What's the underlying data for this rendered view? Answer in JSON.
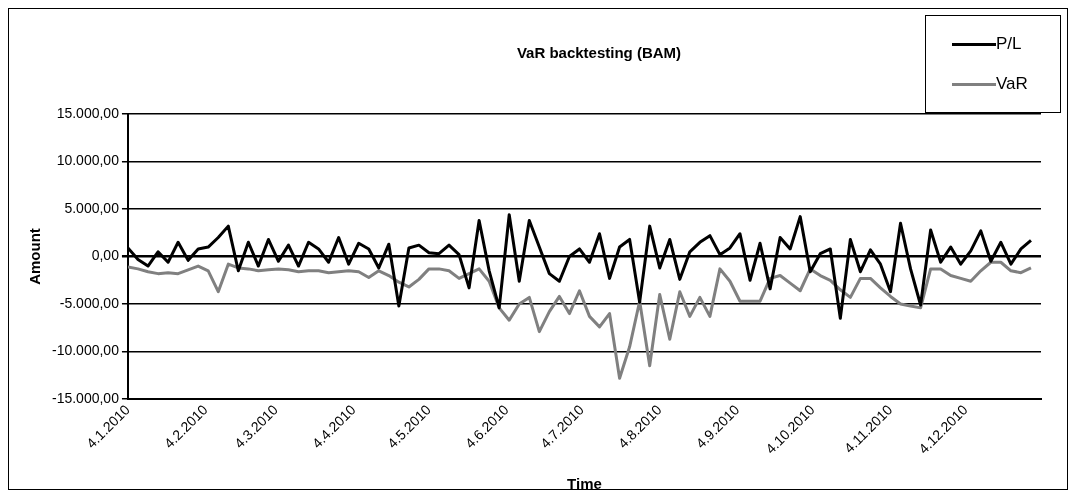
{
  "chart_data": {
    "type": "line",
    "title": "VaR backtesting (BAM)",
    "xlabel": "Time",
    "ylabel": "Amount",
    "legend": "top right",
    "grid": "y",
    "marker": "none",
    "x": [
      "2010-01-04",
      "2010-01-08",
      "2010-01-12",
      "2010-01-16",
      "2010-01-20",
      "2010-01-24",
      "2010-01-28",
      "2010-02-01",
      "2010-02-05",
      "2010-02-09",
      "2010-02-13",
      "2010-02-17",
      "2010-02-21",
      "2010-02-25",
      "2010-03-01",
      "2010-03-05",
      "2010-03-09",
      "2010-03-13",
      "2010-03-17",
      "2010-03-21",
      "2010-03-25",
      "2010-03-29",
      "2010-04-02",
      "2010-04-06",
      "2010-04-10",
      "2010-04-14",
      "2010-04-18",
      "2010-04-22",
      "2010-04-26",
      "2010-04-30",
      "2010-05-04",
      "2010-05-08",
      "2010-05-12",
      "2010-05-16",
      "2010-05-20",
      "2010-05-24",
      "2010-05-28",
      "2010-06-01",
      "2010-06-05",
      "2010-06-09",
      "2010-06-13",
      "2010-06-17",
      "2010-06-21",
      "2010-06-25",
      "2010-06-29",
      "2010-07-03",
      "2010-07-07",
      "2010-07-11",
      "2010-07-15",
      "2010-07-19",
      "2010-07-23",
      "2010-07-27",
      "2010-07-31",
      "2010-08-04",
      "2010-08-08",
      "2010-08-12",
      "2010-08-16",
      "2010-08-20",
      "2010-08-24",
      "2010-08-28",
      "2010-09-01",
      "2010-09-05",
      "2010-09-09",
      "2010-09-13",
      "2010-09-17",
      "2010-09-21",
      "2010-09-25",
      "2010-09-29",
      "2010-10-03",
      "2010-10-07",
      "2010-10-11",
      "2010-10-15",
      "2010-10-19",
      "2010-10-23",
      "2010-10-27",
      "2010-10-31",
      "2010-11-04",
      "2010-11-08",
      "2010-11-12",
      "2010-11-16",
      "2010-11-20",
      "2010-11-24",
      "2010-11-28",
      "2010-12-02",
      "2010-12-06",
      "2010-12-10",
      "2010-12-14",
      "2010-12-18",
      "2010-12-22",
      "2010-12-26",
      "2010-12-30"
    ],
    "series": [
      {
        "name": "P/L",
        "color": "#000000",
        "line_style": "solid",
        "values": [
          900,
          -300,
          -1000,
          500,
          -600,
          1500,
          -400,
          800,
          1000,
          2000,
          3200,
          -1500,
          1500,
          -1000,
          1800,
          -500,
          1200,
          -1000,
          1500,
          800,
          -600,
          2000,
          -800,
          1400,
          800,
          -1200,
          1300,
          -5200,
          900,
          1200,
          400,
          300,
          1200,
          200,
          -3300,
          3800,
          -1500,
          -5400,
          4400,
          -2600,
          3800,
          1000,
          -1800,
          -2600,
          0,
          800,
          -600,
          2400,
          -2300,
          1000,
          1800,
          -4800,
          3200,
          -1200,
          1800,
          -2400,
          500,
          1500,
          2200,
          200,
          900,
          2400,
          -2500,
          1400,
          -3400,
          2000,
          800,
          4200,
          -1600,
          300,
          800,
          -6500,
          1800,
          -1600,
          700,
          -800,
          -3700,
          3500,
          -1300,
          -5100,
          2800,
          -600,
          1000,
          -800,
          600,
          2700,
          -500,
          1500,
          -800,
          800,
          1700
        ]
      },
      {
        "name": "VaR",
        "color": "#808080",
        "line_style": "solid",
        "values": [
          -1100,
          -1300,
          -1600,
          -1800,
          -1700,
          -1800,
          -1400,
          -1000,
          -1500,
          -3700,
          -800,
          -1200,
          -1300,
          -1500,
          -1400,
          -1300,
          -1400,
          -1600,
          -1500,
          -1500,
          -1700,
          -1600,
          -1500,
          -1600,
          -2200,
          -1500,
          -2000,
          -2700,
          -3200,
          -2400,
          -1300,
          -1300,
          -1500,
          -2300,
          -1800,
          -1300,
          -2600,
          -5400,
          -6700,
          -5000,
          -4300,
          -7900,
          -5800,
          -4200,
          -6000,
          -3600,
          -6300,
          -7400,
          -6000,
          -12800,
          -9500,
          -4700,
          -11500,
          -4000,
          -8700,
          -3700,
          -6300,
          -4300,
          -6300,
          -1300,
          -2600,
          -4700,
          -4700,
          -4700,
          -2300,
          -2000,
          -2800,
          -3600,
          -1300,
          -2000,
          -2500,
          -3500,
          -4300,
          -2300,
          -2300,
          -3300,
          -4200,
          -5000,
          -5200,
          -5400,
          -1300,
          -1300,
          -2000,
          -2300,
          -2600,
          -1500,
          -600,
          -600,
          -1500,
          -1700,
          -1200
        ]
      }
    ],
    "xlim": [
      "2010-01-04",
      "2011-01-03"
    ],
    "xticks": [
      {
        "value": "2010-01-04",
        "label": "4.1.2010"
      },
      {
        "value": "2010-02-04",
        "label": "4.2.2010"
      },
      {
        "value": "2010-03-04",
        "label": "4.3.2010"
      },
      {
        "value": "2010-04-04",
        "label": "4.4.2010"
      },
      {
        "value": "2010-05-04",
        "label": "4.5.2010"
      },
      {
        "value": "2010-06-04",
        "label": "4.6.2010"
      },
      {
        "value": "2010-07-04",
        "label": "4.7.2010"
      },
      {
        "value": "2010-08-04",
        "label": "4.8.2010"
      },
      {
        "value": "2010-09-04",
        "label": "4.9.2010"
      },
      {
        "value": "2010-10-04",
        "label": "4.10.2010"
      },
      {
        "value": "2010-11-04",
        "label": "4.11.2010"
      },
      {
        "value": "2010-12-04",
        "label": "4.12.2010"
      }
    ],
    "ylim": [
      -15000,
      15000
    ],
    "yticks": [
      {
        "value": -15000,
        "label": "-15.000,00"
      },
      {
        "value": -10000,
        "label": "-10.000,00"
      },
      {
        "value": -5000,
        "label": "-5.000,00"
      },
      {
        "value": 0,
        "label": "0,00"
      },
      {
        "value": 5000,
        "label": "5.000,00"
      },
      {
        "value": 10000,
        "label": "10.000,00"
      },
      {
        "value": 15000,
        "label": "15.000,00"
      }
    ]
  }
}
